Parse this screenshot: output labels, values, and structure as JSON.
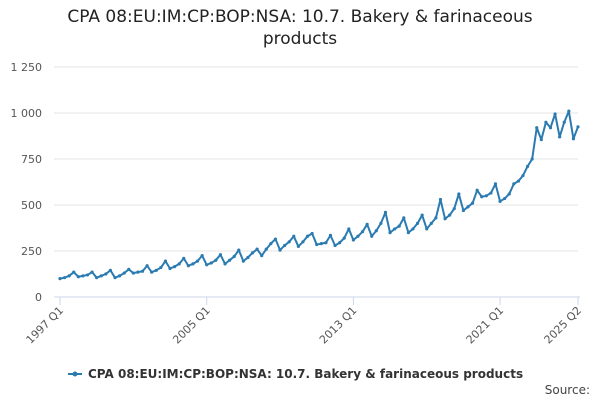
{
  "chart_data": {
    "type": "line",
    "title": "CPA 08:EU:IM:CP:BOP:NSA: 10.7. Bakery & farinaceous products",
    "source": "Source:",
    "categories": [
      "1997 Q1",
      null,
      null,
      null,
      null,
      null,
      null,
      null,
      null,
      null,
      null,
      null,
      null,
      null,
      null,
      null,
      null,
      null,
      null,
      null,
      null,
      null,
      null,
      null,
      null,
      null,
      null,
      null,
      null,
      null,
      null,
      null,
      "2005 Q1",
      null,
      null,
      null,
      null,
      null,
      null,
      null,
      null,
      null,
      null,
      null,
      null,
      null,
      null,
      null,
      null,
      null,
      null,
      null,
      null,
      null,
      null,
      null,
      null,
      null,
      null,
      null,
      null,
      null,
      null,
      null,
      "2013 Q1",
      null,
      null,
      null,
      null,
      null,
      null,
      null,
      null,
      null,
      null,
      null,
      null,
      null,
      null,
      null,
      null,
      null,
      null,
      null,
      null,
      null,
      null,
      null,
      null,
      null,
      null,
      null,
      null,
      null,
      null,
      null,
      "2021 Q1",
      null,
      null,
      null,
      null,
      null,
      null,
      null,
      null,
      null,
      null,
      null,
      null,
      null,
      null,
      null,
      null,
      "2025 Q2"
    ],
    "series": [
      {
        "name": "CPA 08:EU:IM:CP:BOP:NSA: 10.7. Bakery & farinaceous products",
        "color": "#2b7bb1",
        "values": [
          100,
          105,
          115,
          135,
          110,
          115,
          120,
          135,
          105,
          115,
          125,
          145,
          105,
          115,
          130,
          150,
          130,
          135,
          140,
          170,
          135,
          145,
          160,
          195,
          155,
          165,
          180,
          210,
          170,
          180,
          195,
          225,
          175,
          185,
          200,
          230,
          180,
          200,
          220,
          255,
          195,
          215,
          240,
          260,
          225,
          260,
          290,
          315,
          255,
          280,
          300,
          330,
          275,
          300,
          330,
          345,
          285,
          290,
          295,
          335,
          280,
          295,
          320,
          370,
          310,
          330,
          355,
          395,
          330,
          360,
          400,
          460,
          350,
          370,
          385,
          430,
          350,
          370,
          400,
          445,
          370,
          400,
          430,
          530,
          425,
          445,
          480,
          560,
          470,
          490,
          510,
          580,
          545,
          550,
          565,
          615,
          520,
          535,
          560,
          615,
          630,
          660,
          710,
          750,
          920,
          855,
          950,
          920,
          995,
          870,
          950,
          1010,
          860,
          925
        ]
      }
    ],
    "ylim": [
      0,
      1250
    ],
    "yticks": [
      0,
      250,
      500,
      750,
      {
        "value": 1000,
        "label": "1 000"
      },
      {
        "value": 1250,
        "label": "1 250"
      }
    ],
    "grid": true,
    "legend": "bottom"
  }
}
